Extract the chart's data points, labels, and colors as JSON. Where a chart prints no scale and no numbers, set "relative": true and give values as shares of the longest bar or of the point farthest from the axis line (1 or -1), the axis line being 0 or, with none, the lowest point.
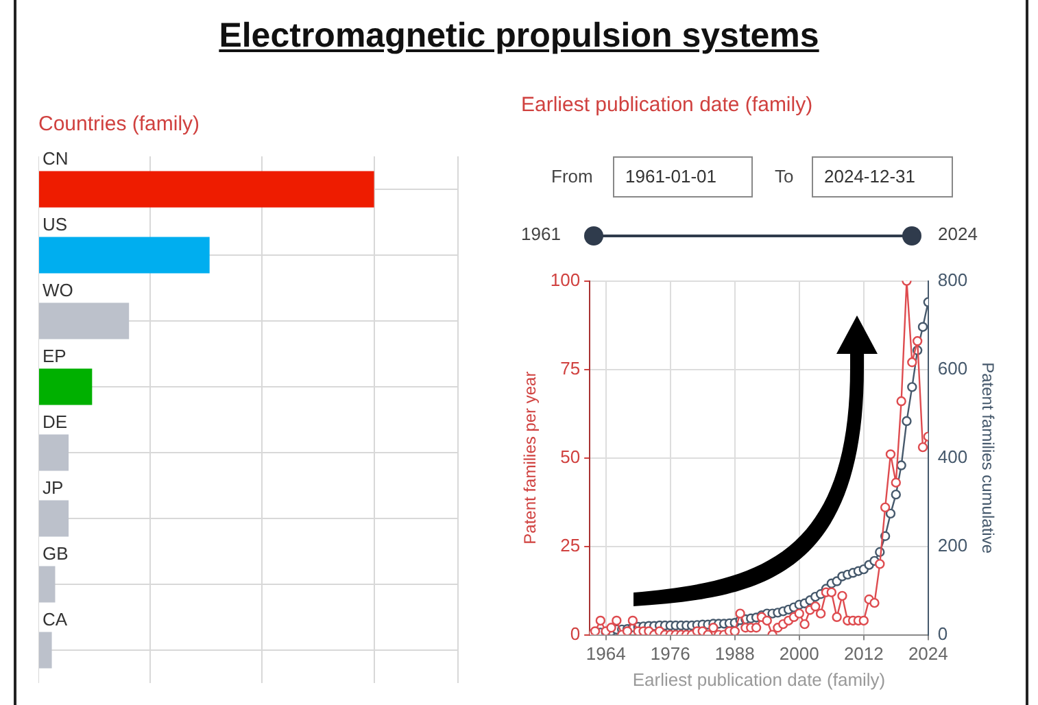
{
  "chart_data": [
    {
      "type": "other",
      "title": "Electromagnetic propulsion systems"
    },
    {
      "type": "bar",
      "orientation": "horizontal",
      "relative": true,
      "title": "Countries (family)",
      "categories": [
        "CN",
        "US",
        "WO",
        "EP",
        "DE",
        "JP",
        "GB",
        "CA"
      ],
      "values": [
        1,
        0.51,
        0.27,
        0.16,
        0.09,
        0.09,
        0.05,
        0.04
      ],
      "colors": [
        "#ee1c00",
        "#00aeef",
        "#bcc1cb",
        "#00b000",
        "#bcc1cb",
        "#bcc1cb",
        "#bcc1cb",
        "#bcc1cb"
      ],
      "grid": true
    },
    {
      "type": "line",
      "title": "Earliest publication date (family)",
      "annotations": [
        "From",
        "1961-01-01",
        "To",
        "2024-12-31",
        "1961",
        "2024"
      ],
      "xlabel": "Earliest publication date (family)",
      "ylabel": "Patent families per year",
      "y2label": "Patent families cumulative",
      "x": [
        1961,
        1962,
        1963,
        1964,
        1965,
        1966,
        1967,
        1968,
        1969,
        1970,
        1971,
        1972,
        1973,
        1974,
        1975,
        1976,
        1977,
        1978,
        1979,
        1980,
        1981,
        1982,
        1983,
        1984,
        1985,
        1986,
        1987,
        1988,
        1989,
        1990,
        1991,
        1992,
        1993,
        1994,
        1995,
        1996,
        1997,
        1998,
        1999,
        2000,
        2001,
        2002,
        2003,
        2004,
        2005,
        2006,
        2007,
        2008,
        2009,
        2010,
        2011,
        2012,
        2013,
        2014,
        2015,
        2016,
        2017,
        2018,
        2019,
        2020,
        2021,
        2022,
        2023,
        2024
      ],
      "series": [
        {
          "color": "#de4b4f",
          "values": [
            0,
            1,
            4,
            1,
            2,
            4,
            0,
            1,
            4,
            1,
            1,
            1,
            0,
            1,
            0,
            0,
            0,
            0,
            0,
            0,
            1,
            1,
            0,
            2,
            0,
            0,
            1,
            1,
            6,
            2,
            2,
            2,
            5,
            4,
            0,
            2,
            3,
            4,
            5,
            6,
            3,
            7,
            8,
            6,
            12,
            12,
            5,
            11,
            4,
            4,
            4,
            4,
            10,
            9,
            20,
            36,
            51,
            43,
            66,
            100,
            77,
            83,
            53,
            56
          ]
        },
        {
          "color": "#46596c",
          "axis": "y2",
          "values": [
            0,
            1,
            5,
            6,
            8,
            12,
            12,
            13,
            17,
            18,
            19,
            20,
            20,
            21,
            21,
            21,
            21,
            21,
            21,
            21,
            22,
            23,
            23,
            25,
            25,
            25,
            26,
            27,
            33,
            35,
            37,
            39,
            44,
            48,
            48,
            50,
            53,
            57,
            62,
            68,
            71,
            78,
            86,
            92,
            104,
            116,
            121,
            132,
            136,
            140,
            144,
            148,
            158,
            167,
            187,
            223,
            274,
            317,
            383,
            483,
            560,
            643,
            696,
            752
          ]
        }
      ],
      "xlim": [
        1961,
        2024
      ],
      "xticks": [
        1964,
        1976,
        1988,
        2000,
        2012,
        2024
      ],
      "ylim": [
        0,
        100
      ],
      "yticks": [
        0,
        25,
        50,
        75,
        100
      ],
      "y2lim": [
        0,
        800
      ],
      "y2ticks": [
        0,
        200,
        400,
        600,
        800
      ],
      "grid": true,
      "marker": "circle",
      "line_style": "solid"
    }
  ]
}
